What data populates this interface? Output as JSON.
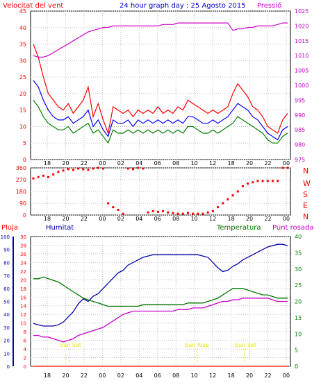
{
  "header": {
    "left_label": "Velocitat del vent",
    "title": "24 hour graph day : 25 Agosto 2015",
    "right_label": "Pressió"
  },
  "direction_labels": [
    "N",
    "W",
    "S",
    "E",
    "N"
  ],
  "bottom_labels": {
    "pluja": "Pluja",
    "humitat": "Humitat",
    "temperatura": "Temperatura",
    "punt_rosada": "Punt rosada"
  },
  "annotations": [
    "Sun Set",
    "Sun Rise",
    "Sun Set"
  ],
  "colors": {
    "wind_gust": "#ff0000",
    "wind_avg": "#0000ff",
    "wind_speed": "#008000",
    "pressure": "#cc00cc",
    "direction": "#ff0000",
    "humidity": "#0000aa",
    "temperature": "#007700",
    "dewpoint": "#cc00cc",
    "rain": "#ff0000",
    "annotation": "#e6e600",
    "grid": "#c0c0c0"
  },
  "chart_data": [
    {
      "type": "line",
      "title": "24 hour graph day : 25 Agosto 2015",
      "x_ticks": [
        "18",
        "20",
        "22",
        "00",
        "02",
        "04",
        "06",
        "08",
        "10",
        "12",
        "18",
        "20",
        "22",
        "00"
      ],
      "y_left": {
        "label": "Velocitat del vent",
        "ylim": [
          0,
          45
        ],
        "ticks": [
          0,
          5,
          10,
          15,
          20,
          25,
          30,
          35,
          40,
          45
        ]
      },
      "y_right": {
        "label": "Pressió",
        "ylim": [
          975,
          1025
        ],
        "ticks": [
          975,
          980,
          985,
          990,
          995,
          1000,
          1005,
          1010,
          1015,
          1020,
          1025
        ]
      },
      "grid": true,
      "series": [
        {
          "axis": "left",
          "values": [
            35,
            31,
            25,
            20,
            18,
            16,
            15,
            17,
            14,
            16,
            18,
            22,
            13,
            17,
            12,
            8,
            16,
            15,
            14,
            15,
            13,
            15,
            14,
            15,
            14,
            16,
            14,
            15,
            14,
            16,
            15,
            18,
            17,
            16,
            15,
            14,
            15,
            14,
            15,
            16,
            20,
            23,
            21,
            19,
            16,
            15,
            13,
            10,
            9,
            8,
            12,
            14
          ]
        },
        {
          "axis": "left",
          "values": [
            24,
            22,
            18,
            15,
            13,
            12,
            12,
            13,
            11,
            12,
            13,
            15,
            10,
            12,
            9,
            7,
            12,
            11,
            11,
            12,
            10,
            12,
            11,
            12,
            11,
            12,
            11,
            12,
            11,
            12,
            11,
            13,
            13,
            12,
            11,
            11,
            12,
            11,
            12,
            13,
            15,
            17,
            16,
            15,
            13,
            12,
            10,
            8,
            7,
            6,
            9,
            10
          ]
        },
        {
          "axis": "left",
          "values": [
            18,
            16,
            13,
            11,
            10,
            9,
            9,
            10,
            8,
            9,
            10,
            11,
            8,
            9,
            7,
            5,
            9,
            8,
            8,
            9,
            8,
            9,
            8,
            9,
            8,
            9,
            8,
            9,
            8,
            9,
            8,
            10,
            10,
            9,
            8,
            8,
            9,
            8,
            9,
            10,
            11,
            13,
            12,
            11,
            10,
            9,
            8,
            6,
            5,
            5,
            7,
            8
          ]
        },
        {
          "axis": "right",
          "values": [
            1010,
            1009.5,
            1009.5,
            1010,
            1011,
            1012,
            1013,
            1014,
            1015,
            1016,
            1017,
            1018,
            1018.5,
            1019,
            1019.5,
            1019.5,
            1020,
            1020,
            1020,
            1020,
            1020,
            1020,
            1020,
            1020,
            1020,
            1020,
            1020.5,
            1020.5,
            1020.5,
            1021,
            1021,
            1021,
            1021,
            1021,
            1021,
            1021,
            1021,
            1021,
            1021,
            1021,
            1018.5,
            1019,
            1019,
            1019.5,
            1019.5,
            1020,
            1020,
            1020,
            1020,
            1020.5,
            1021,
            1021
          ]
        }
      ]
    },
    {
      "type": "scatter",
      "title": "",
      "x_ticks": [
        "18",
        "20",
        "22",
        "00",
        "02",
        "04",
        "06",
        "08",
        "10",
        "12",
        "18",
        "20",
        "22",
        "00"
      ],
      "y_left": {
        "ylim": [
          0,
          360
        ],
        "ticks": [
          0,
          90,
          180,
          270,
          360
        ]
      },
      "grid": true,
      "series": [
        {
          "axis": "left",
          "values": [
            280,
            290,
            300,
            290,
            310,
            330,
            340,
            350,
            345,
            355,
            350,
            345,
            355,
            360,
            355,
            90,
            60,
            40,
            10,
            355,
            350,
            360,
            355,
            20,
            30,
            25,
            30,
            20,
            15,
            10,
            10,
            15,
            10,
            10,
            10,
            20,
            30,
            60,
            90,
            120,
            150,
            180,
            220,
            240,
            250,
            260,
            260,
            260,
            260,
            260,
            360,
            360
          ]
        }
      ]
    },
    {
      "type": "line",
      "title": "",
      "x_ticks": [
        "18",
        "20",
        "22",
        "00",
        "02",
        "04",
        "06",
        "08",
        "10",
        "12",
        "18",
        "20",
        "22",
        "00"
      ],
      "y_left": {
        "label": "Pluja",
        "ylim": [
          0,
          30
        ],
        "ticks": [
          0,
          2,
          4,
          6,
          8,
          10,
          12,
          14,
          16,
          18,
          20,
          22,
          24,
          26,
          28,
          30
        ]
      },
      "y_left2": {
        "label": "Humitat",
        "ylim": [
          0,
          100
        ],
        "ticks": [
          0,
          10,
          20,
          30,
          40,
          50,
          60,
          70,
          80,
          90,
          100
        ]
      },
      "y_right": {
        "label": "Temperatura",
        "ylim": [
          0,
          40
        ],
        "ticks": [
          0,
          5,
          10,
          15,
          20,
          25,
          30,
          35,
          40
        ]
      },
      "grid": true,
      "series": [
        {
          "axis": "left2",
          "values": [
            33,
            32,
            31,
            31,
            31,
            32,
            34,
            38,
            42,
            48,
            52,
            50,
            54,
            56,
            60,
            64,
            68,
            72,
            74,
            78,
            80,
            82,
            84,
            85,
            86,
            86,
            86,
            86,
            86,
            86,
            86,
            86,
            86,
            86,
            85,
            84,
            80,
            76,
            73,
            74,
            77,
            79,
            82,
            84,
            86,
            88,
            90,
            92,
            93,
            94,
            94,
            93
          ]
        },
        {
          "axis": "right",
          "values": [
            27,
            27,
            27.5,
            27,
            26.5,
            26,
            25,
            24,
            23,
            22,
            21,
            20.5,
            20,
            19.5,
            19,
            18.5,
            18.5,
            18.5,
            18.5,
            18.5,
            18.5,
            18.5,
            19,
            19,
            19,
            19,
            19,
            19,
            19,
            19,
            19,
            19.5,
            19.5,
            19.5,
            19.5,
            20,
            20.5,
            21,
            22,
            23,
            24,
            24,
            24,
            23.5,
            23,
            22.5,
            22,
            22,
            21.5,
            21,
            21,
            21
          ]
        },
        {
          "axis": "right",
          "values": [
            9.5,
            9.5,
            9,
            9,
            8.5,
            8,
            7.5,
            8,
            8.5,
            9.5,
            10,
            10.5,
            11,
            11.5,
            12,
            13,
            14,
            15,
            16,
            16.5,
            17,
            17,
            17,
            17,
            17,
            17,
            17,
            17,
            17,
            17.5,
            17.5,
            17.5,
            18,
            18,
            18,
            18.5,
            19,
            19.5,
            20,
            20,
            20.5,
            20.5,
            21,
            21,
            21,
            21,
            21,
            21,
            20.5,
            20,
            20,
            20
          ]
        },
        {
          "axis": "left",
          "values": [
            0,
            0,
            0,
            0,
            0,
            0,
            0,
            0,
            0,
            0,
            0,
            0,
            0,
            0,
            0,
            0,
            0,
            0,
            0,
            0,
            0,
            0,
            0,
            0,
            0,
            0,
            0,
            0,
            0,
            0,
            0,
            0,
            0,
            0,
            0,
            0,
            0,
            0,
            0,
            0,
            0,
            0,
            0,
            0,
            0,
            0,
            0,
            0,
            0,
            0,
            0,
            0
          ]
        }
      ]
    }
  ]
}
